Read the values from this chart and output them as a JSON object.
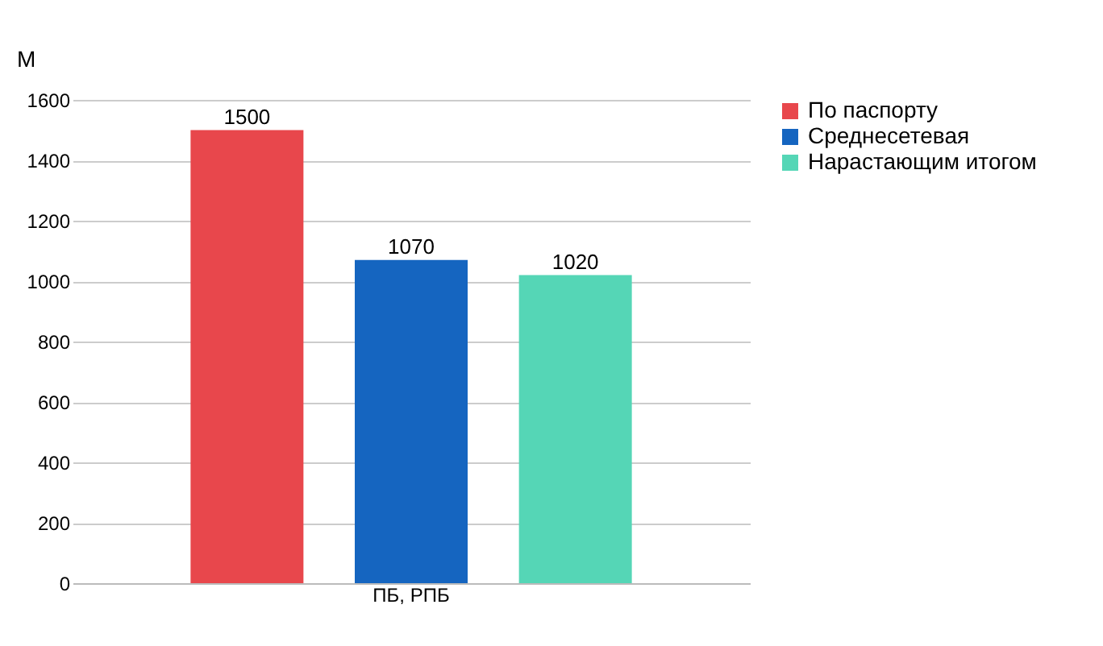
{
  "chart_data": {
    "type": "bar",
    "ylabel": "М",
    "categories": [
      "ПБ, РПБ"
    ],
    "series": [
      {
        "name": "По паспорту",
        "color": "#e8474c",
        "values": [
          1500
        ]
      },
      {
        "name": "Среднесетевая",
        "color": "#1565c0",
        "values": [
          1070
        ]
      },
      {
        "name": "Нарастающим итогом",
        "color": "#55d6b6",
        "values": [
          1020
        ]
      }
    ],
    "ylim": [
      0,
      1600
    ],
    "yticks": [
      0,
      200,
      400,
      600,
      800,
      1000,
      1200,
      1400,
      1600
    ],
    "grid": "y",
    "legend": "right",
    "data_labels": true
  }
}
